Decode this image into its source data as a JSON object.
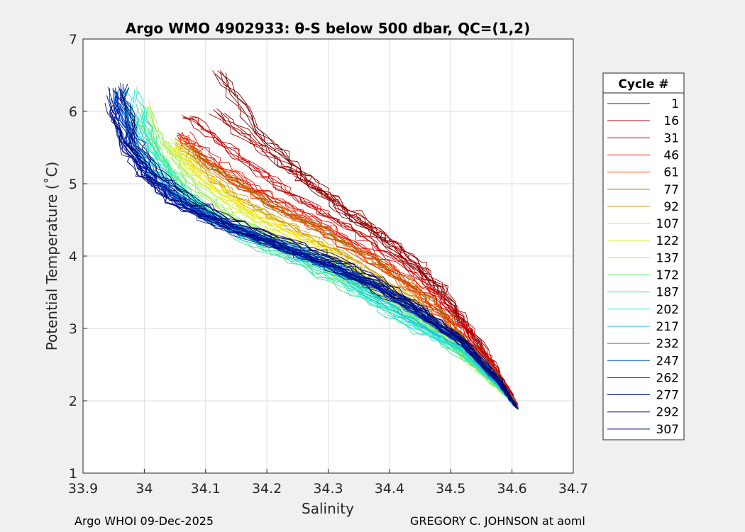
{
  "chart_data": {
    "type": "line",
    "title": "Argo WMO 4902933: θ-S below 500 dbar,  QC=(1,2)",
    "xlabel": "Salinity",
    "ylabel": "Potential Temperature (˚C)",
    "xlim": [
      33.9,
      34.7
    ],
    "ylim": [
      1,
      7
    ],
    "xticks": [
      "33.9",
      "34",
      "34.1",
      "34.2",
      "34.3",
      "34.4",
      "34.5",
      "34.6",
      "34.7"
    ],
    "xtick_values": [
      33.9,
      34.0,
      34.1,
      34.2,
      34.3,
      34.4,
      34.5,
      34.6,
      34.7
    ],
    "yticks": [
      "1",
      "2",
      "3",
      "4",
      "5",
      "6",
      "7"
    ],
    "ytick_values": [
      1,
      2,
      3,
      4,
      5,
      6,
      7
    ],
    "grid": true,
    "legend": {
      "title": "Cycle #",
      "location": "outside-right",
      "entries": [
        {
          "label": "1",
          "color": "#800000"
        },
        {
          "label": "16",
          "color": "#a30000"
        },
        {
          "label": "31",
          "color": "#cc0000"
        },
        {
          "label": "46",
          "color": "#ee1100"
        },
        {
          "label": "61",
          "color": "#ff4000"
        },
        {
          "label": "77",
          "color": "#b06a00"
        },
        {
          "label": "92",
          "color": "#d0a000"
        },
        {
          "label": "107",
          "color": "#f7e000"
        },
        {
          "label": "122",
          "color": "#d8f23a"
        },
        {
          "label": "137",
          "color": "#9ef25c"
        },
        {
          "label": "172",
          "color": "#5ef07a"
        },
        {
          "label": "187",
          "color": "#3ce89e"
        },
        {
          "label": "202",
          "color": "#22e6d6"
        },
        {
          "label": "217",
          "color": "#10c4ea"
        },
        {
          "label": "232",
          "color": "#0a8ed8"
        },
        {
          "label": "247",
          "color": "#0657c8"
        },
        {
          "label": "262",
          "color": "#0028b6"
        },
        {
          "label": "277",
          "color": "#00129a"
        },
        {
          "label": "292",
          "color": "#000a80"
        },
        {
          "label": "307",
          "color": "#00076a"
        }
      ]
    },
    "series": [
      {
        "name": "1",
        "color": "#800000",
        "x": [
          34.12,
          34.18,
          34.23,
          34.27,
          34.32,
          34.38,
          34.43,
          34.48,
          34.52,
          34.56,
          34.59,
          34.61
        ],
        "y": [
          6.55,
          5.75,
          5.35,
          5.0,
          4.65,
          4.3,
          3.95,
          3.55,
          3.1,
          2.6,
          2.2,
          1.9
        ]
      },
      {
        "name": "16",
        "color": "#a30000",
        "x": [
          34.12,
          34.18,
          34.24,
          34.29,
          34.34,
          34.39,
          34.44,
          34.48,
          34.52,
          34.56,
          34.59,
          34.61
        ],
        "y": [
          6.0,
          5.55,
          5.2,
          4.9,
          4.6,
          4.3,
          3.95,
          3.55,
          3.1,
          2.6,
          2.2,
          1.9
        ]
      },
      {
        "name": "31",
        "color": "#cc0000",
        "x": [
          34.07,
          34.12,
          34.18,
          34.24,
          34.3,
          34.36,
          34.42,
          34.47,
          34.52,
          34.56,
          34.59,
          34.61
        ],
        "y": [
          5.95,
          5.6,
          5.2,
          4.85,
          4.55,
          4.25,
          3.9,
          3.5,
          3.05,
          2.6,
          2.2,
          1.9
        ]
      },
      {
        "name": "46",
        "color": "#ee1100",
        "x": [
          34.06,
          34.1,
          34.16,
          34.22,
          34.28,
          34.34,
          34.4,
          34.46,
          34.51,
          34.56,
          34.59,
          34.61
        ],
        "y": [
          5.7,
          5.4,
          5.05,
          4.75,
          4.5,
          4.2,
          3.85,
          3.45,
          3.0,
          2.55,
          2.2,
          1.9
        ]
      },
      {
        "name": "61",
        "color": "#ff4000",
        "x": [
          34.06,
          34.1,
          34.16,
          34.22,
          34.28,
          34.34,
          34.4,
          34.46,
          34.51,
          34.56,
          34.59,
          34.61
        ],
        "y": [
          5.65,
          5.3,
          4.95,
          4.65,
          4.4,
          4.1,
          3.8,
          3.4,
          2.95,
          2.5,
          2.15,
          1.9
        ]
      },
      {
        "name": "77",
        "color": "#b06a00",
        "x": [
          34.07,
          34.11,
          34.17,
          34.23,
          34.29,
          34.35,
          34.41,
          34.46,
          34.51,
          34.56,
          34.59,
          34.61
        ],
        "y": [
          5.5,
          5.2,
          4.9,
          4.6,
          4.35,
          4.05,
          3.75,
          3.4,
          2.95,
          2.5,
          2.15,
          1.9
        ]
      },
      {
        "name": "92",
        "color": "#d0a000",
        "x": [
          34.06,
          34.1,
          34.15,
          34.21,
          34.27,
          34.33,
          34.39,
          34.45,
          34.5,
          34.55,
          34.59,
          34.61
        ],
        "y": [
          5.55,
          5.2,
          4.85,
          4.55,
          4.3,
          4.0,
          3.7,
          3.35,
          2.9,
          2.45,
          2.1,
          1.88
        ]
      },
      {
        "name": "107",
        "color": "#f7e000",
        "x": [
          34.05,
          34.09,
          34.14,
          34.2,
          34.26,
          34.32,
          34.38,
          34.44,
          34.5,
          34.55,
          34.59,
          34.61
        ],
        "y": [
          5.5,
          5.15,
          4.8,
          4.5,
          4.25,
          3.95,
          3.65,
          3.3,
          2.9,
          2.45,
          2.1,
          1.88
        ]
      },
      {
        "name": "122",
        "color": "#d8f23a",
        "x": [
          34.04,
          34.07,
          34.12,
          34.18,
          34.24,
          34.3,
          34.37,
          34.44,
          34.5,
          34.55,
          34.59,
          34.61
        ],
        "y": [
          5.6,
          5.25,
          4.85,
          4.5,
          4.2,
          3.9,
          3.6,
          3.25,
          2.85,
          2.4,
          2.1,
          1.88
        ]
      },
      {
        "name": "137",
        "color": "#9ef25c",
        "x": [
          34.0,
          34.03,
          34.07,
          34.13,
          34.2,
          34.27,
          34.34,
          34.42,
          34.49,
          34.55,
          34.59,
          34.61
        ],
        "y": [
          6.1,
          5.55,
          5.05,
          4.6,
          4.25,
          3.95,
          3.65,
          3.3,
          2.9,
          2.45,
          2.1,
          1.88
        ]
      },
      {
        "name": "172",
        "color": "#5ef07a",
        "x": [
          34.0,
          34.03,
          34.08,
          34.14,
          34.21,
          34.28,
          34.35,
          34.43,
          34.49,
          34.55,
          34.59,
          34.61
        ],
        "y": [
          5.9,
          5.35,
          4.85,
          4.45,
          4.15,
          3.9,
          3.6,
          3.25,
          2.85,
          2.42,
          2.1,
          1.88
        ]
      },
      {
        "name": "187",
        "color": "#3ce89e",
        "x": [
          33.99,
          34.02,
          34.06,
          34.12,
          34.19,
          34.26,
          34.33,
          34.41,
          34.48,
          34.55,
          34.59,
          34.61
        ],
        "y": [
          6.0,
          5.4,
          4.9,
          4.45,
          4.1,
          3.85,
          3.55,
          3.2,
          2.85,
          2.42,
          2.1,
          1.88
        ]
      },
      {
        "name": "202",
        "color": "#22e6d6",
        "x": [
          33.98,
          34.0,
          34.04,
          34.1,
          34.17,
          34.25,
          34.32,
          34.38,
          34.45,
          34.52,
          34.58,
          34.61
        ],
        "y": [
          6.3,
          5.6,
          5.05,
          4.6,
          4.3,
          4.0,
          3.75,
          3.35,
          2.95,
          2.7,
          2.2,
          1.88
        ]
      },
      {
        "name": "217",
        "color": "#10c4ea",
        "x": [
          33.97,
          33.99,
          34.03,
          34.09,
          34.16,
          34.24,
          34.31,
          34.38,
          34.45,
          34.52,
          34.58,
          34.61
        ],
        "y": [
          6.2,
          5.55,
          5.0,
          4.6,
          4.3,
          4.05,
          3.8,
          3.45,
          3.05,
          2.75,
          2.2,
          1.88
        ]
      },
      {
        "name": "232",
        "color": "#0a8ed8",
        "x": [
          33.96,
          33.98,
          34.02,
          34.07,
          34.14,
          34.22,
          34.3,
          34.38,
          34.45,
          34.52,
          34.58,
          34.61
        ],
        "y": [
          6.3,
          5.6,
          5.1,
          4.75,
          4.45,
          4.2,
          3.95,
          3.6,
          3.2,
          2.8,
          2.25,
          1.88
        ]
      },
      {
        "name": "247",
        "color": "#0657c8",
        "x": [
          33.96,
          33.98,
          34.02,
          34.07,
          34.14,
          34.22,
          34.3,
          34.38,
          34.45,
          34.52,
          34.58,
          34.61
        ],
        "y": [
          6.25,
          5.55,
          5.05,
          4.7,
          4.4,
          4.15,
          3.9,
          3.6,
          3.2,
          2.8,
          2.25,
          1.88
        ]
      },
      {
        "name": "262",
        "color": "#0028b6",
        "x": [
          33.95,
          33.97,
          34.01,
          34.06,
          34.13,
          34.21,
          34.29,
          34.37,
          34.45,
          34.52,
          34.58,
          34.61
        ],
        "y": [
          6.3,
          5.6,
          5.1,
          4.75,
          4.45,
          4.2,
          3.95,
          3.65,
          3.25,
          2.82,
          2.25,
          1.88
        ]
      },
      {
        "name": "277",
        "color": "#00129a",
        "x": [
          33.95,
          33.97,
          34.01,
          34.06,
          34.13,
          34.21,
          34.29,
          34.37,
          34.45,
          34.52,
          34.58,
          34.61
        ],
        "y": [
          6.2,
          5.55,
          5.05,
          4.7,
          4.4,
          4.15,
          3.9,
          3.6,
          3.2,
          2.8,
          2.25,
          1.88
        ]
      },
      {
        "name": "292",
        "color": "#000a80",
        "x": [
          33.95,
          33.97,
          34.01,
          34.06,
          34.13,
          34.21,
          34.29,
          34.37,
          34.45,
          34.52,
          34.58,
          34.61
        ],
        "y": [
          6.1,
          5.5,
          5.05,
          4.72,
          4.42,
          4.17,
          3.92,
          3.62,
          3.22,
          2.8,
          2.25,
          1.88
        ]
      },
      {
        "name": "307",
        "color": "#00076a",
        "x": [
          33.96,
          33.98,
          34.02,
          34.07,
          34.14,
          34.22,
          34.3,
          34.38,
          34.45,
          34.52,
          34.58,
          34.61
        ],
        "y": [
          6.35,
          5.65,
          5.15,
          4.8,
          4.5,
          4.25,
          4.0,
          3.68,
          3.28,
          2.85,
          2.28,
          1.88
        ]
      }
    ]
  },
  "footer": {
    "left": "Argo WHOI 09-Dec-2025",
    "right": "GREGORY C. JOHNSON at aoml"
  }
}
